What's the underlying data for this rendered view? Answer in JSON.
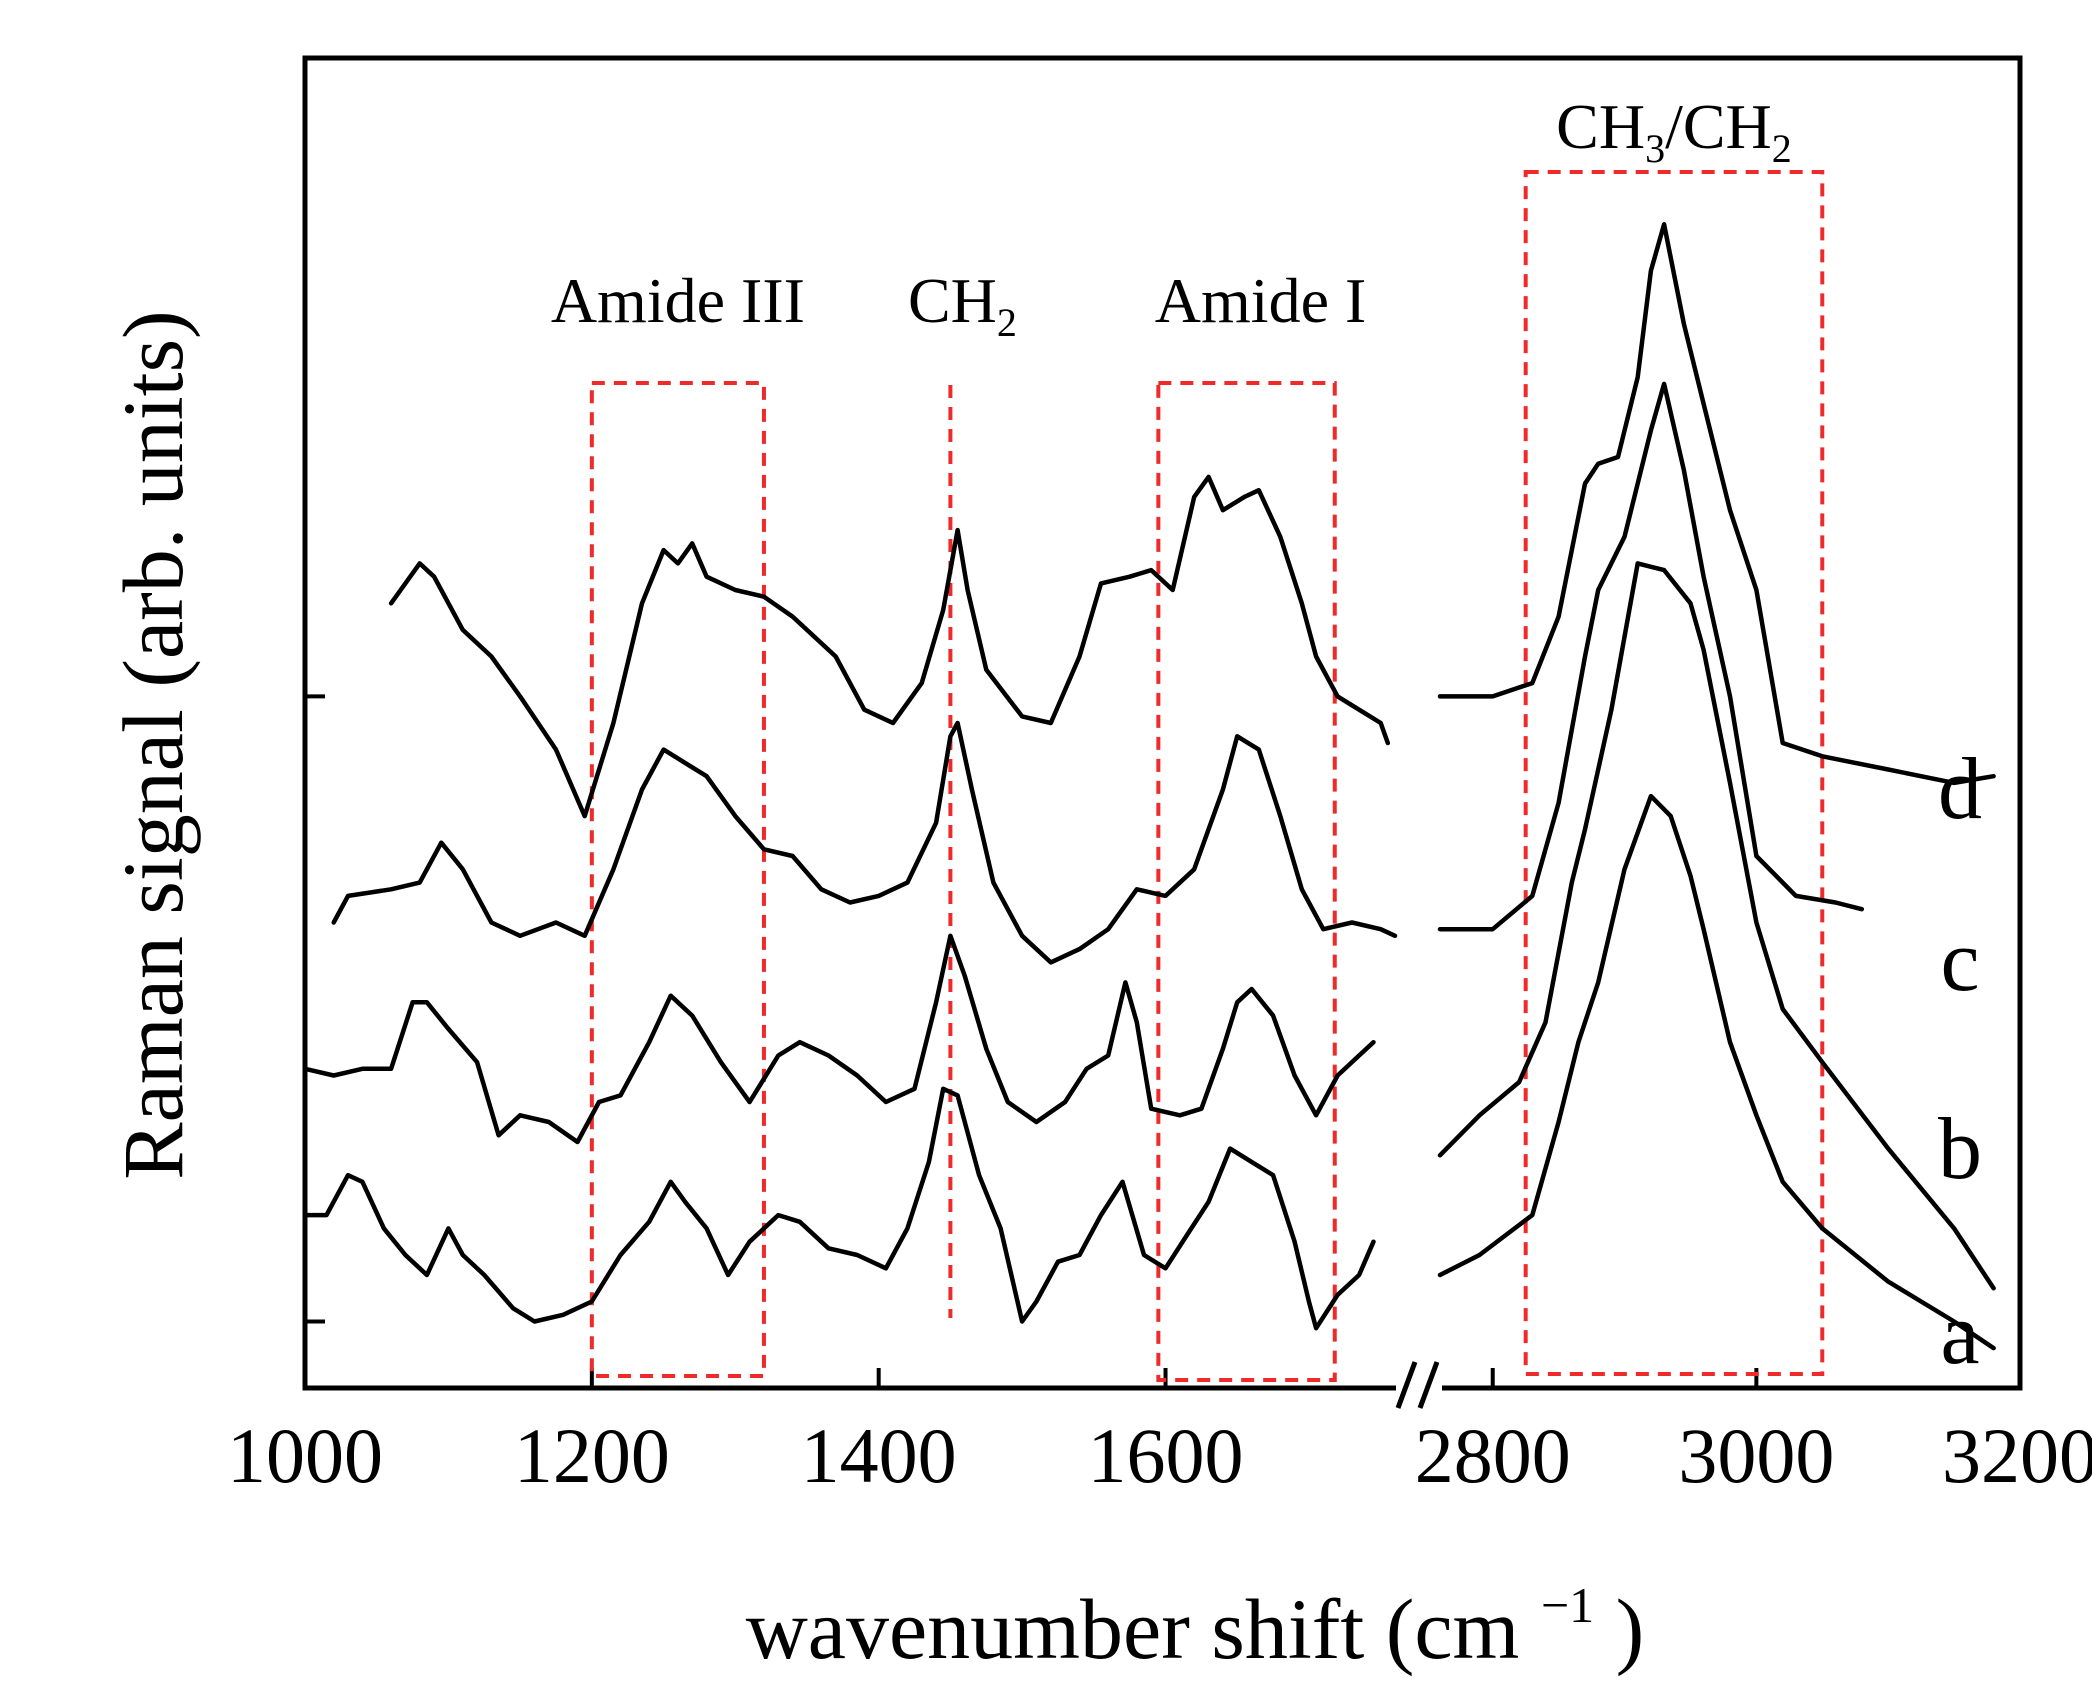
{
  "chart_data": {
    "type": "line",
    "title": "",
    "xlabel": "wavenumber shift (cm",
    "xlabel_superscript": "−1",
    "xlabel_close": ")",
    "ylabel": "Raman signal (arb. units)",
    "x_broken_axis": true,
    "xlim_left": [
      1000,
      1760
    ],
    "xlim_right": [
      2760,
      3200
    ],
    "xticks_left": [
      1000,
      1200,
      1400,
      1600
    ],
    "xticks_right": [
      2800,
      3000,
      3200
    ],
    "tick_labels": [
      "1000",
      "1200",
      "1400",
      "1600",
      "2800",
      "3000",
      "3200"
    ],
    "ylim": [
      0,
      1
    ],
    "yticks": [
      0.05,
      0.52,
      1.0
    ],
    "annotations": [
      {
        "label": "Amide III",
        "x_range": [
          1200,
          1320
        ]
      },
      {
        "label": "CH",
        "sub": "2",
        "x": 1450
      },
      {
        "label": "Amide I",
        "x_range": [
          1595,
          1718
        ]
      },
      {
        "label": "CH",
        "sub": "3",
        "label2": "/CH",
        "sub2": "2",
        "x_range": [
          2825,
          3050
        ]
      }
    ],
    "series_labels": [
      "d",
      "c",
      "b",
      "a"
    ],
    "series": [
      {
        "name": "d",
        "left": [
          [
            1060,
            0.59
          ],
          [
            1080,
            0.62
          ],
          [
            1090,
            0.61
          ],
          [
            1110,
            0.57
          ],
          [
            1130,
            0.55
          ],
          [
            1150,
            0.52
          ],
          [
            1175,
            0.48
          ],
          [
            1195,
            0.43
          ],
          [
            1215,
            0.5
          ],
          [
            1235,
            0.59
          ],
          [
            1250,
            0.63
          ],
          [
            1260,
            0.62
          ],
          [
            1270,
            0.635
          ],
          [
            1280,
            0.61
          ],
          [
            1300,
            0.6
          ],
          [
            1320,
            0.595
          ],
          [
            1340,
            0.58
          ],
          [
            1370,
            0.55
          ],
          [
            1390,
            0.51
          ],
          [
            1410,
            0.5
          ],
          [
            1430,
            0.53
          ],
          [
            1445,
            0.585
          ],
          [
            1455,
            0.645
          ],
          [
            1462,
            0.6
          ],
          [
            1475,
            0.54
          ],
          [
            1500,
            0.505
          ],
          [
            1520,
            0.5
          ],
          [
            1540,
            0.55
          ],
          [
            1555,
            0.605
          ],
          [
            1575,
            0.61
          ],
          [
            1590,
            0.615
          ],
          [
            1605,
            0.6
          ],
          [
            1620,
            0.67
          ],
          [
            1630,
            0.685
          ],
          [
            1640,
            0.66
          ],
          [
            1655,
            0.67
          ],
          [
            1665,
            0.675
          ],
          [
            1680,
            0.64
          ],
          [
            1695,
            0.59
          ],
          [
            1705,
            0.55
          ],
          [
            1720,
            0.52
          ],
          [
            1735,
            0.51
          ],
          [
            1750,
            0.5
          ],
          [
            1755,
            0.485
          ]
        ],
        "right": [
          [
            2760,
            0.52
          ],
          [
            2800,
            0.52
          ],
          [
            2830,
            0.53
          ],
          [
            2850,
            0.58
          ],
          [
            2870,
            0.68
          ],
          [
            2880,
            0.695
          ],
          [
            2895,
            0.7
          ],
          [
            2910,
            0.76
          ],
          [
            2920,
            0.84
          ],
          [
            2930,
            0.875
          ],
          [
            2945,
            0.8
          ],
          [
            2960,
            0.74
          ],
          [
            2980,
            0.66
          ],
          [
            3000,
            0.6
          ],
          [
            3020,
            0.485
          ],
          [
            3050,
            0.475
          ],
          [
            3100,
            0.465
          ],
          [
            3150,
            0.455
          ],
          [
            3180,
            0.46
          ]
        ]
      },
      {
        "name": "c",
        "left": [
          [
            1020,
            0.35
          ],
          [
            1030,
            0.37
          ],
          [
            1060,
            0.375
          ],
          [
            1080,
            0.38
          ],
          [
            1095,
            0.41
          ],
          [
            1110,
            0.39
          ],
          [
            1130,
            0.35
          ],
          [
            1150,
            0.34
          ],
          [
            1175,
            0.35
          ],
          [
            1195,
            0.34
          ],
          [
            1215,
            0.39
          ],
          [
            1235,
            0.45
          ],
          [
            1250,
            0.48
          ],
          [
            1265,
            0.47
          ],
          [
            1280,
            0.46
          ],
          [
            1300,
            0.43
          ],
          [
            1320,
            0.405
          ],
          [
            1340,
            0.4
          ],
          [
            1360,
            0.375
          ],
          [
            1380,
            0.365
          ],
          [
            1400,
            0.37
          ],
          [
            1420,
            0.38
          ],
          [
            1440,
            0.425
          ],
          [
            1450,
            0.49
          ],
          [
            1455,
            0.5
          ],
          [
            1465,
            0.45
          ],
          [
            1480,
            0.38
          ],
          [
            1500,
            0.34
          ],
          [
            1520,
            0.32
          ],
          [
            1540,
            0.33
          ],
          [
            1560,
            0.345
          ],
          [
            1580,
            0.375
          ],
          [
            1600,
            0.37
          ],
          [
            1620,
            0.39
          ],
          [
            1640,
            0.45
          ],
          [
            1650,
            0.49
          ],
          [
            1665,
            0.48
          ],
          [
            1680,
            0.43
          ],
          [
            1695,
            0.375
          ],
          [
            1710,
            0.345
          ],
          [
            1730,
            0.35
          ],
          [
            1750,
            0.345
          ],
          [
            1760,
            0.34
          ]
        ],
        "right": [
          [
            2760,
            0.345
          ],
          [
            2800,
            0.345
          ],
          [
            2830,
            0.37
          ],
          [
            2850,
            0.44
          ],
          [
            2870,
            0.55
          ],
          [
            2880,
            0.6
          ],
          [
            2900,
            0.64
          ],
          [
            2920,
            0.72
          ],
          [
            2930,
            0.755
          ],
          [
            2945,
            0.69
          ],
          [
            2960,
            0.61
          ],
          [
            2980,
            0.52
          ],
          [
            3000,
            0.4
          ],
          [
            3030,
            0.37
          ],
          [
            3060,
            0.365
          ],
          [
            3080,
            0.36
          ]
        ]
      },
      {
        "name": "b",
        "left": [
          [
            1000,
            0.24
          ],
          [
            1020,
            0.235
          ],
          [
            1040,
            0.24
          ],
          [
            1060,
            0.24
          ],
          [
            1075,
            0.29
          ],
          [
            1085,
            0.29
          ],
          [
            1100,
            0.27
          ],
          [
            1120,
            0.245
          ],
          [
            1135,
            0.19
          ],
          [
            1150,
            0.205
          ],
          [
            1170,
            0.2
          ],
          [
            1190,
            0.185
          ],
          [
            1205,
            0.215
          ],
          [
            1220,
            0.22
          ],
          [
            1240,
            0.26
          ],
          [
            1255,
            0.295
          ],
          [
            1270,
            0.28
          ],
          [
            1290,
            0.245
          ],
          [
            1310,
            0.215
          ],
          [
            1330,
            0.25
          ],
          [
            1345,
            0.26
          ],
          [
            1365,
            0.25
          ],
          [
            1385,
            0.235
          ],
          [
            1405,
            0.215
          ],
          [
            1425,
            0.225
          ],
          [
            1440,
            0.29
          ],
          [
            1450,
            0.34
          ],
          [
            1460,
            0.31
          ],
          [
            1475,
            0.255
          ],
          [
            1490,
            0.215
          ],
          [
            1510,
            0.2
          ],
          [
            1530,
            0.215
          ],
          [
            1545,
            0.24
          ],
          [
            1560,
            0.25
          ],
          [
            1572,
            0.305
          ],
          [
            1580,
            0.275
          ],
          [
            1590,
            0.21
          ],
          [
            1610,
            0.205
          ],
          [
            1625,
            0.21
          ],
          [
            1640,
            0.255
          ],
          [
            1650,
            0.29
          ],
          [
            1660,
            0.3
          ],
          [
            1675,
            0.28
          ],
          [
            1690,
            0.235
          ],
          [
            1705,
            0.205
          ],
          [
            1720,
            0.235
          ],
          [
            1735,
            0.25
          ],
          [
            1745,
            0.26
          ]
        ],
        "right": [
          [
            2760,
            0.175
          ],
          [
            2790,
            0.205
          ],
          [
            2820,
            0.23
          ],
          [
            2840,
            0.275
          ],
          [
            2860,
            0.38
          ],
          [
            2870,
            0.42
          ],
          [
            2890,
            0.51
          ],
          [
            2910,
            0.62
          ],
          [
            2930,
            0.615
          ],
          [
            2950,
            0.59
          ],
          [
            2960,
            0.555
          ],
          [
            2980,
            0.455
          ],
          [
            3000,
            0.35
          ],
          [
            3020,
            0.285
          ],
          [
            3050,
            0.245
          ],
          [
            3100,
            0.18
          ],
          [
            3150,
            0.12
          ],
          [
            3180,
            0.075
          ]
        ]
      },
      {
        "name": "a",
        "left": [
          [
            1000,
            0.13
          ],
          [
            1015,
            0.13
          ],
          [
            1030,
            0.16
          ],
          [
            1040,
            0.155
          ],
          [
            1055,
            0.12
          ],
          [
            1070,
            0.1
          ],
          [
            1085,
            0.085
          ],
          [
            1100,
            0.12
          ],
          [
            1110,
            0.1
          ],
          [
            1125,
            0.085
          ],
          [
            1145,
            0.06
          ],
          [
            1160,
            0.05
          ],
          [
            1180,
            0.055
          ],
          [
            1200,
            0.065
          ],
          [
            1220,
            0.1
          ],
          [
            1240,
            0.125
          ],
          [
            1255,
            0.155
          ],
          [
            1265,
            0.14
          ],
          [
            1280,
            0.12
          ],
          [
            1295,
            0.085
          ],
          [
            1310,
            0.11
          ],
          [
            1330,
            0.13
          ],
          [
            1345,
            0.125
          ],
          [
            1365,
            0.105
          ],
          [
            1385,
            0.1
          ],
          [
            1405,
            0.09
          ],
          [
            1420,
            0.12
          ],
          [
            1435,
            0.17
          ],
          [
            1445,
            0.225
          ],
          [
            1455,
            0.22
          ],
          [
            1470,
            0.16
          ],
          [
            1485,
            0.12
          ],
          [
            1500,
            0.05
          ],
          [
            1510,
            0.065
          ],
          [
            1525,
            0.095
          ],
          [
            1540,
            0.1
          ],
          [
            1555,
            0.13
          ],
          [
            1570,
            0.155
          ],
          [
            1585,
            0.1
          ],
          [
            1600,
            0.09
          ],
          [
            1615,
            0.115
          ],
          [
            1630,
            0.14
          ],
          [
            1645,
            0.18
          ],
          [
            1660,
            0.17
          ],
          [
            1675,
            0.16
          ],
          [
            1690,
            0.11
          ],
          [
            1700,
            0.065
          ],
          [
            1705,
            0.045
          ],
          [
            1720,
            0.07
          ],
          [
            1735,
            0.085
          ],
          [
            1745,
            0.11
          ]
        ],
        "right": [
          [
            2760,
            0.085
          ],
          [
            2790,
            0.1
          ],
          [
            2810,
            0.115
          ],
          [
            2830,
            0.13
          ],
          [
            2850,
            0.2
          ],
          [
            2865,
            0.26
          ],
          [
            2880,
            0.305
          ],
          [
            2900,
            0.39
          ],
          [
            2920,
            0.445
          ],
          [
            2935,
            0.43
          ],
          [
            2950,
            0.385
          ],
          [
            2960,
            0.345
          ],
          [
            2980,
            0.26
          ],
          [
            3000,
            0.205
          ],
          [
            3020,
            0.155
          ],
          [
            3050,
            0.12
          ],
          [
            3100,
            0.08
          ],
          [
            3150,
            0.05
          ],
          [
            3180,
            0.03
          ]
        ]
      }
    ]
  }
}
